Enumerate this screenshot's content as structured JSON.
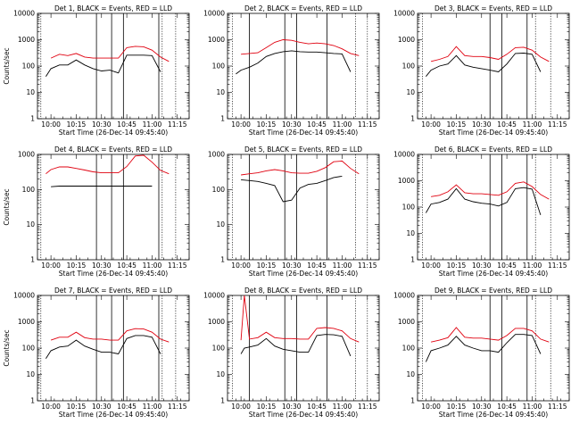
{
  "chart_data": [
    {
      "type": "line",
      "title": "Det 1, BLACK = Events, RED = LLD",
      "ylabel": "Counts/sec",
      "xlabel": "Start Time (26-Dec-14 09:45:40)",
      "yscale": "log",
      "ylim": [
        1,
        10000
      ],
      "yticks": [
        "1",
        "10",
        "100",
        "1000",
        "10000"
      ],
      "xticks": [
        "10:00",
        "10:15",
        "10:30",
        "10:45",
        "11:00",
        "11:15"
      ],
      "x": [
        "09:57",
        "10:00",
        "10:05",
        "10:10",
        "10:15",
        "10:20",
        "10:25",
        "10:30",
        "10:35",
        "10:40",
        "10:45",
        "10:50",
        "10:55",
        "11:00",
        "11:05",
        "11:10"
      ],
      "series": [
        {
          "name": "Events",
          "color": "#000000",
          "values": [
            40,
            80,
            110,
            110,
            170,
            110,
            80,
            65,
            70,
            55,
            260,
            260,
            260,
            250,
            60,
            null
          ]
        },
        {
          "name": "LLD",
          "color": "#e0000f",
          "values": [
            null,
            200,
            280,
            250,
            300,
            220,
            200,
            200,
            200,
            200,
            500,
            560,
            540,
            400,
            220,
            150
          ]
        }
      ],
      "vlines_solid": [
        "10:27",
        "10:36",
        "10:43",
        "11:04"
      ],
      "vlines_dotted": [
        "09:54",
        "11:06",
        "11:14"
      ]
    },
    {
      "type": "line",
      "title": "Det 2, BLACK = Events, RED = LLD",
      "ylabel": "",
      "xlabel": "Start Time (26-Dec-14 09:45:40)",
      "yscale": "log",
      "ylim": [
        1,
        10000
      ],
      "yticks": [
        "1",
        "10",
        "100",
        "1000",
        "10000"
      ],
      "xticks": [
        "10:00",
        "10:15",
        "10:30",
        "10:45",
        "11:00",
        "11:15"
      ],
      "x": [
        "09:57",
        "10:00",
        "10:05",
        "10:10",
        "10:15",
        "10:20",
        "10:25",
        "10:30",
        "10:35",
        "10:40",
        "10:45",
        "10:50",
        "10:55",
        "11:00",
        "11:05",
        "11:10"
      ],
      "series": [
        {
          "name": "Events",
          "color": "#000000",
          "values": [
            50,
            70,
            90,
            130,
            230,
            300,
            350,
            380,
            350,
            340,
            340,
            320,
            300,
            290,
            60,
            null
          ]
        },
        {
          "name": "LLD",
          "color": "#e0000f",
          "values": [
            null,
            280,
            300,
            320,
            500,
            800,
            1000,
            950,
            800,
            700,
            750,
            700,
            600,
            450,
            300,
            250
          ]
        }
      ],
      "vlines_solid": [
        "10:05",
        "10:26",
        "10:33",
        "10:51"
      ],
      "vlines_dotted": [
        "09:55",
        "11:08",
        "11:15"
      ]
    },
    {
      "type": "line",
      "title": "Det 3, BLACK = Events, RED = LLD",
      "ylabel": "",
      "xlabel": "Start Time (26-Dec-14 09:45:40)",
      "yscale": "log",
      "ylim": [
        1,
        10000
      ],
      "yticks": [
        "1",
        "10",
        "100",
        "1000",
        "10000"
      ],
      "xticks": [
        "10:00",
        "10:15",
        "10:30",
        "10:45",
        "11:00",
        "11:15"
      ],
      "x": [
        "09:57",
        "10:00",
        "10:05",
        "10:10",
        "10:15",
        "10:20",
        "10:25",
        "10:30",
        "10:35",
        "10:40",
        "10:45",
        "10:50",
        "10:55",
        "11:00",
        "11:05",
        "11:10"
      ],
      "series": [
        {
          "name": "Events",
          "color": "#000000",
          "values": [
            40,
            70,
            100,
            120,
            250,
            110,
            90,
            80,
            70,
            60,
            120,
            300,
            310,
            280,
            60,
            null
          ]
        },
        {
          "name": "LLD",
          "color": "#e0000f",
          "values": [
            null,
            150,
            180,
            230,
            550,
            250,
            230,
            230,
            210,
            180,
            280,
            500,
            520,
            400,
            220,
            150
          ]
        }
      ],
      "vlines_solid": [
        "10:35",
        "10:42",
        "10:57"
      ],
      "vlines_dotted": [
        "09:55",
        "11:02",
        "11:11"
      ]
    },
    {
      "type": "line",
      "title": "Det 4, BLACK = Events, RED = LLD",
      "ylabel": "Counts/sec",
      "xlabel": "Start Time (26-Dec-14 09:45:40)",
      "yscale": "log",
      "ylim": [
        1,
        1000
      ],
      "yticks": [
        "1",
        "10",
        "100",
        "1000"
      ],
      "xticks": [
        "10:00",
        "10:15",
        "10:30",
        "10:45",
        "11:00",
        "11:15"
      ],
      "x": [
        "09:57",
        "10:00",
        "10:05",
        "10:10",
        "10:15",
        "10:20",
        "10:25",
        "10:30",
        "10:35",
        "10:40",
        "10:45",
        "10:50",
        "10:55",
        "11:00",
        "11:05",
        "11:10"
      ],
      "series": [
        {
          "name": "Events",
          "color": "#000000",
          "values": [
            null,
            120,
            125,
            125,
            125,
            125,
            125,
            125,
            125,
            125,
            125,
            125,
            125,
            125,
            null,
            null
          ]
        },
        {
          "name": "LLD",
          "color": "#e0000f",
          "values": [
            280,
            370,
            440,
            440,
            400,
            360,
            320,
            300,
            300,
            300,
            450,
            900,
            950,
            600,
            350,
            280
          ]
        }
      ],
      "vlines_solid": [
        "10:27",
        "10:36",
        "10:43",
        "11:04"
      ],
      "vlines_dotted": [
        "09:54",
        "11:06",
        "11:14"
      ]
    },
    {
      "type": "line",
      "title": "Det 5, BLACK = Events, RED = LLD",
      "ylabel": "",
      "xlabel": "Start Time (26-Dec-14 09:45:40)",
      "yscale": "log",
      "ylim": [
        1,
        1000
      ],
      "yticks": [
        "1",
        "10",
        "100",
        "1000"
      ],
      "xticks": [
        "10:00",
        "10:15",
        "10:30",
        "10:45",
        "11:00",
        "11:15"
      ],
      "x": [
        "09:57",
        "10:00",
        "10:05",
        "10:10",
        "10:15",
        "10:20",
        "10:25",
        "10:30",
        "10:35",
        "10:40",
        "10:45",
        "10:50",
        "10:55",
        "11:00",
        "11:05",
        "11:10"
      ],
      "series": [
        {
          "name": "Events",
          "color": "#000000",
          "values": [
            null,
            190,
            180,
            170,
            150,
            130,
            45,
            50,
            110,
            140,
            150,
            180,
            220,
            240,
            null,
            null
          ]
        },
        {
          "name": "LLD",
          "color": "#e0000f",
          "values": [
            null,
            260,
            280,
            300,
            340,
            370,
            340,
            300,
            290,
            290,
            330,
            420,
            620,
            650,
            400,
            280
          ]
        }
      ],
      "vlines_solid": [
        "10:05",
        "10:26",
        "10:33",
        "10:51"
      ],
      "vlines_dotted": [
        "09:55",
        "11:08",
        "11:15"
      ]
    },
    {
      "type": "line",
      "title": "Det 6, BLACK = Events, RED = LLD",
      "ylabel": "",
      "xlabel": "Start Time (26-Dec-14 09:45:40)",
      "yscale": "log",
      "ylim": [
        1,
        10000
      ],
      "yticks": [
        "1",
        "10",
        "100",
        "1000",
        "10000"
      ],
      "xticks": [
        "10:00",
        "10:15",
        "10:30",
        "10:45",
        "11:00",
        "11:15"
      ],
      "x": [
        "09:57",
        "10:00",
        "10:05",
        "10:10",
        "10:15",
        "10:20",
        "10:25",
        "10:30",
        "10:35",
        "10:40",
        "10:45",
        "10:50",
        "10:55",
        "11:00",
        "11:05",
        "11:10"
      ],
      "series": [
        {
          "name": "Events",
          "color": "#000000",
          "values": [
            60,
            130,
            150,
            200,
            500,
            200,
            160,
            140,
            130,
            110,
            150,
            500,
            550,
            480,
            50,
            null
          ]
        },
        {
          "name": "LLD",
          "color": "#e0000f",
          "values": [
            null,
            250,
            280,
            380,
            700,
            350,
            320,
            320,
            300,
            280,
            380,
            800,
            900,
            600,
            300,
            200
          ]
        }
      ],
      "vlines_solid": [
        "10:35",
        "10:42",
        "10:57"
      ],
      "vlines_dotted": [
        "09:55",
        "11:02",
        "11:11"
      ]
    },
    {
      "type": "line",
      "title": "Det 7, BLACK = Events, RED = LLD",
      "ylabel": "Counts/sec",
      "xlabel": "Start Time (26-Dec-14 09:45:40)",
      "yscale": "log",
      "ylim": [
        1,
        10000
      ],
      "yticks": [
        "1",
        "10",
        "100",
        "1000",
        "10000"
      ],
      "xticks": [
        "10:00",
        "10:15",
        "10:30",
        "10:45",
        "11:00",
        "11:15"
      ],
      "x": [
        "09:57",
        "10:00",
        "10:05",
        "10:10",
        "10:15",
        "10:20",
        "10:25",
        "10:30",
        "10:35",
        "10:40",
        "10:45",
        "10:50",
        "10:55",
        "11:00",
        "11:05",
        "11:10"
      ],
      "series": [
        {
          "name": "Events",
          "color": "#000000",
          "values": [
            40,
            80,
            110,
            120,
            200,
            120,
            90,
            70,
            70,
            60,
            230,
            300,
            300,
            260,
            60,
            null
          ]
        },
        {
          "name": "LLD",
          "color": "#e0000f",
          "values": [
            null,
            200,
            260,
            260,
            400,
            250,
            220,
            220,
            200,
            200,
            450,
            550,
            530,
            400,
            220,
            170
          ]
        }
      ],
      "vlines_solid": [
        "10:27",
        "10:36",
        "10:43",
        "11:04"
      ],
      "vlines_dotted": [
        "09:54",
        "11:06",
        "11:14"
      ]
    },
    {
      "type": "line",
      "title": "Det 8, BLACK = Events, RED = LLD",
      "ylabel": "",
      "xlabel": "Start Time (26-Dec-14 09:45:40)",
      "yscale": "log",
      "ylim": [
        1,
        10000
      ],
      "yticks": [
        "1",
        "10",
        "100",
        "1000",
        "10000"
      ],
      "xticks": [
        "10:00",
        "10:15",
        "10:30",
        "10:45",
        "11:00",
        "11:15"
      ],
      "x": [
        "09:57",
        "10:00",
        "10:02",
        "10:05",
        "10:10",
        "10:15",
        "10:20",
        "10:25",
        "10:30",
        "10:35",
        "10:40",
        "10:45",
        "10:50",
        "10:55",
        "11:00",
        "11:05",
        "11:10"
      ],
      "series": [
        {
          "name": "Events",
          "color": "#000000",
          "values": [
            null,
            60,
            100,
            110,
            130,
            230,
            120,
            90,
            80,
            70,
            70,
            300,
            330,
            320,
            280,
            50,
            null
          ]
        },
        {
          "name": "LLD",
          "color": "#e0000f",
          "values": [
            null,
            200,
            10000,
            220,
            250,
            400,
            250,
            230,
            230,
            220,
            220,
            560,
            600,
            560,
            450,
            230,
            170
          ]
        }
      ],
      "vlines_solid": [
        "10:05",
        "10:26",
        "10:33",
        "10:51"
      ],
      "vlines_dotted": [
        "09:55",
        "11:08",
        "11:15"
      ]
    },
    {
      "type": "line",
      "title": "Det 9, BLACK = Events, RED = LLD",
      "ylabel": "",
      "xlabel": "Start Time (26-Dec-14 09:45:40)",
      "yscale": "log",
      "ylim": [
        1,
        10000
      ],
      "yticks": [
        "1",
        "10",
        "100",
        "1000",
        "10000"
      ],
      "xticks": [
        "10:00",
        "10:15",
        "10:30",
        "10:45",
        "11:00",
        "11:15"
      ],
      "x": [
        "09:57",
        "10:00",
        "10:05",
        "10:10",
        "10:15",
        "10:20",
        "10:25",
        "10:30",
        "10:35",
        "10:40",
        "10:45",
        "10:50",
        "10:55",
        "11:00",
        "11:05",
        "11:10"
      ],
      "series": [
        {
          "name": "Events",
          "color": "#000000",
          "values": [
            30,
            80,
            100,
            130,
            280,
            130,
            100,
            80,
            80,
            70,
            160,
            330,
            330,
            300,
            60,
            null
          ]
        },
        {
          "name": "LLD",
          "color": "#e0000f",
          "values": [
            null,
            170,
            200,
            250,
            600,
            260,
            240,
            240,
            220,
            200,
            300,
            560,
            560,
            450,
            220,
            170
          ]
        }
      ],
      "vlines_solid": [
        "10:35",
        "10:42",
        "10:57"
      ],
      "vlines_dotted": [
        "09:55",
        "11:02",
        "11:11"
      ]
    }
  ]
}
